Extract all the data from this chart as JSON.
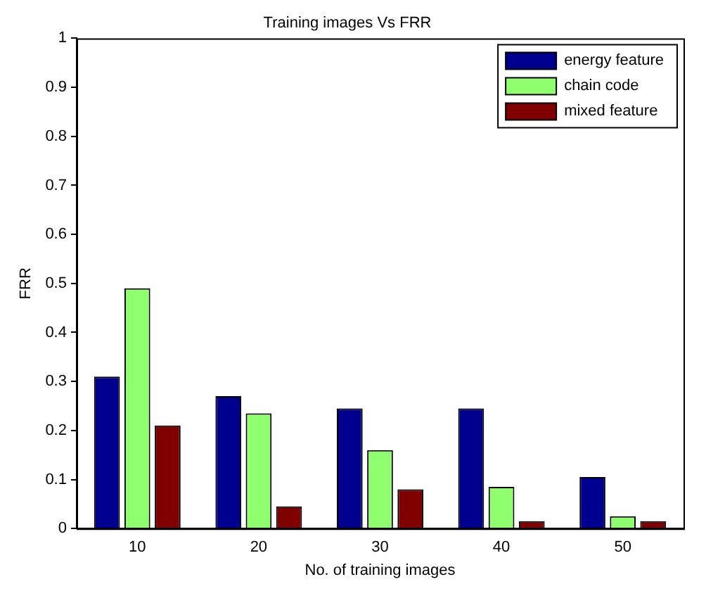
{
  "chart_data": {
    "type": "bar",
    "title": "Training images Vs FRR",
    "xlabel": "No. of training images",
    "ylabel": "FRR",
    "categories": [
      "10",
      "20",
      "30",
      "40",
      "50"
    ],
    "series": [
      {
        "name": "energy feature",
        "color": "#00008f",
        "values": [
          0.31,
          0.27,
          0.245,
          0.245,
          0.105
        ]
      },
      {
        "name": "chain code",
        "color": "#8fff70",
        "values": [
          0.49,
          0.235,
          0.16,
          0.085,
          0.025
        ]
      },
      {
        "name": "mixed feature",
        "color": "#800000",
        "values": [
          0.21,
          0.045,
          0.08,
          0.015,
          0.015
        ]
      }
    ],
    "ylim": [
      0,
      1
    ],
    "yticks": [
      0,
      0.1,
      0.2,
      0.3,
      0.4,
      0.5,
      0.6,
      0.7,
      0.8,
      0.9,
      1
    ],
    "grid": false,
    "legend": "top right"
  }
}
